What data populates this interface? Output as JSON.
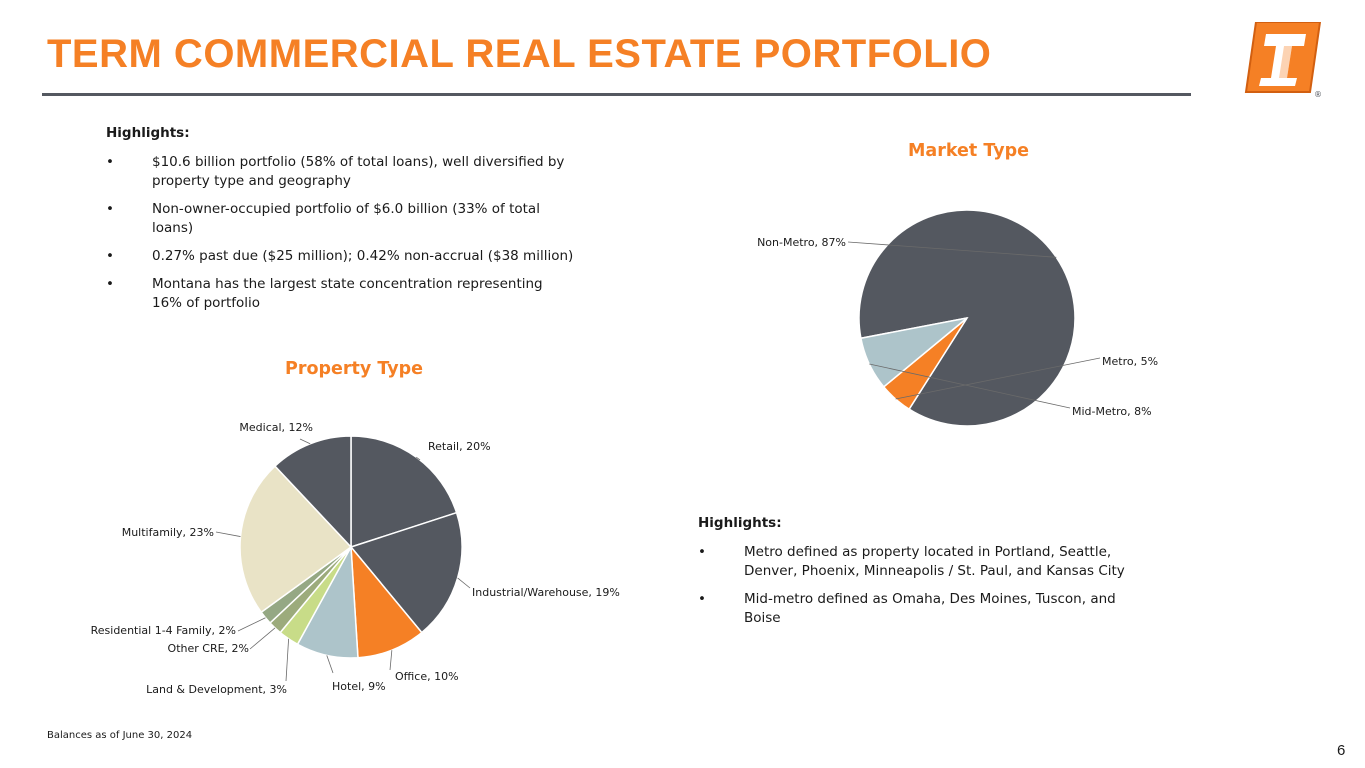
{
  "page": {
    "title": "TERM COMMERCIAL REAL ESTATE PORTFOLIO",
    "footnote": "Balances as of June 30, 2024",
    "page_number": "6",
    "logo_mark": "®",
    "brand_colors": {
      "orange": "#F58025",
      "charcoal": "#545860"
    }
  },
  "highlights_left": {
    "heading": "Highlights:",
    "bullets": [
      "$10.6 billion portfolio (58% of total loans), well diversified by property type and geography",
      "Non-owner-occupied portfolio of $6.0 billion (33% of total loans)",
      "0.27% past due ($25 million); 0.42% non-accrual ($38 million)",
      "Montana has the largest state concentration representing 16% of portfolio"
    ]
  },
  "highlights_right": {
    "heading": "Highlights:",
    "bullets": [
      "Metro defined as property located in Portland, Seattle, Denver, Phoenix, Minneapolis / St. Paul, and Kansas City",
      "Mid-metro defined as Omaha, Des Moines, Tuscon, and Boise"
    ]
  },
  "chart_data": [
    {
      "type": "pie",
      "title": "Property Type",
      "categories": [
        "Retail",
        "Industrial/Warehouse",
        "Office",
        "Hotel",
        "Land & Development",
        "Other CRE",
        "Residential 1-4 Family",
        "Multifamily",
        "Medical"
      ],
      "values": [
        20,
        19,
        10,
        9,
        3,
        2,
        2,
        23,
        12
      ],
      "labels": [
        "Retail, 20%",
        "Industrial/Warehouse, 19%",
        "Office, 10%",
        "Hotel, 9%",
        "Land & Development, 3%",
        "Other CRE, 2%",
        "Residential 1-4 Family, 2%",
        "Multifamily, 23%",
        "Medical, 12%"
      ],
      "colors": [
        "#545860",
        "#545860",
        "#F58025",
        "#ADC4CA",
        "#C8DC88",
        "#9CAB7C",
        "#95A884",
        "#E9E3C6",
        "#545860"
      ],
      "start": "12 o'clock, clockwise"
    },
    {
      "type": "pie",
      "title": "Market Type",
      "categories": [
        "Non-Metro",
        "Metro",
        "Mid-Metro"
      ],
      "values": [
        87,
        5,
        8
      ],
      "labels": [
        "Non-Metro, 87%",
        "Metro, 5%",
        "Mid-Metro, 8%"
      ],
      "colors": [
        "#545860",
        "#F58025",
        "#ADC4CA"
      ],
      "start": "clockwise from Non-Metro"
    }
  ]
}
